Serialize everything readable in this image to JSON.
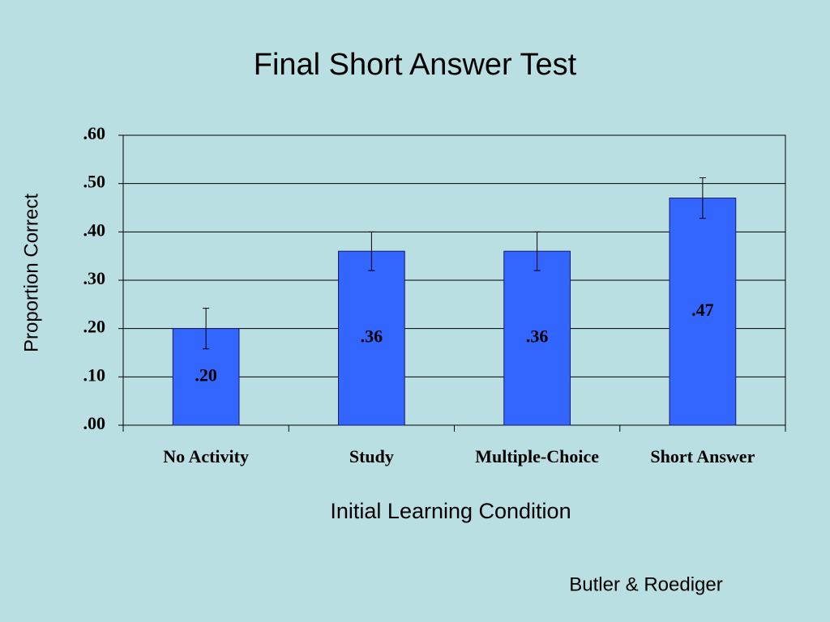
{
  "chart_data": {
    "type": "bar",
    "title": "Final Short Answer Test",
    "categories": [
      "No Activity",
      "Study",
      "Multiple-Choice",
      "Short Answer"
    ],
    "values": [
      0.2,
      0.36,
      0.36,
      0.47
    ],
    "value_labels": [
      ".20",
      ".36",
      ".36",
      ".47"
    ],
    "errors": [
      0.042,
      0.04,
      0.04,
      0.042
    ],
    "color": "#3366ff",
    "x_label": "Initial Learning Condition",
    "y_label": "Proportion Correct",
    "source": "Butler & Roediger",
    "ylim": [
      0,
      0.6
    ],
    "yticks": [
      {
        "value": 0,
        "label": ".00"
      },
      {
        "value": 0.1,
        "label": ".10"
      },
      {
        "value": 0.2,
        "label": ".20"
      },
      {
        "value": 0.3,
        "label": ".30"
      },
      {
        "value": 0.4,
        "label": ".40"
      },
      {
        "value": 0.5,
        "label": ".50"
      },
      {
        "value": 0.6,
        "label": ".60"
      }
    ],
    "grid": true
  }
}
